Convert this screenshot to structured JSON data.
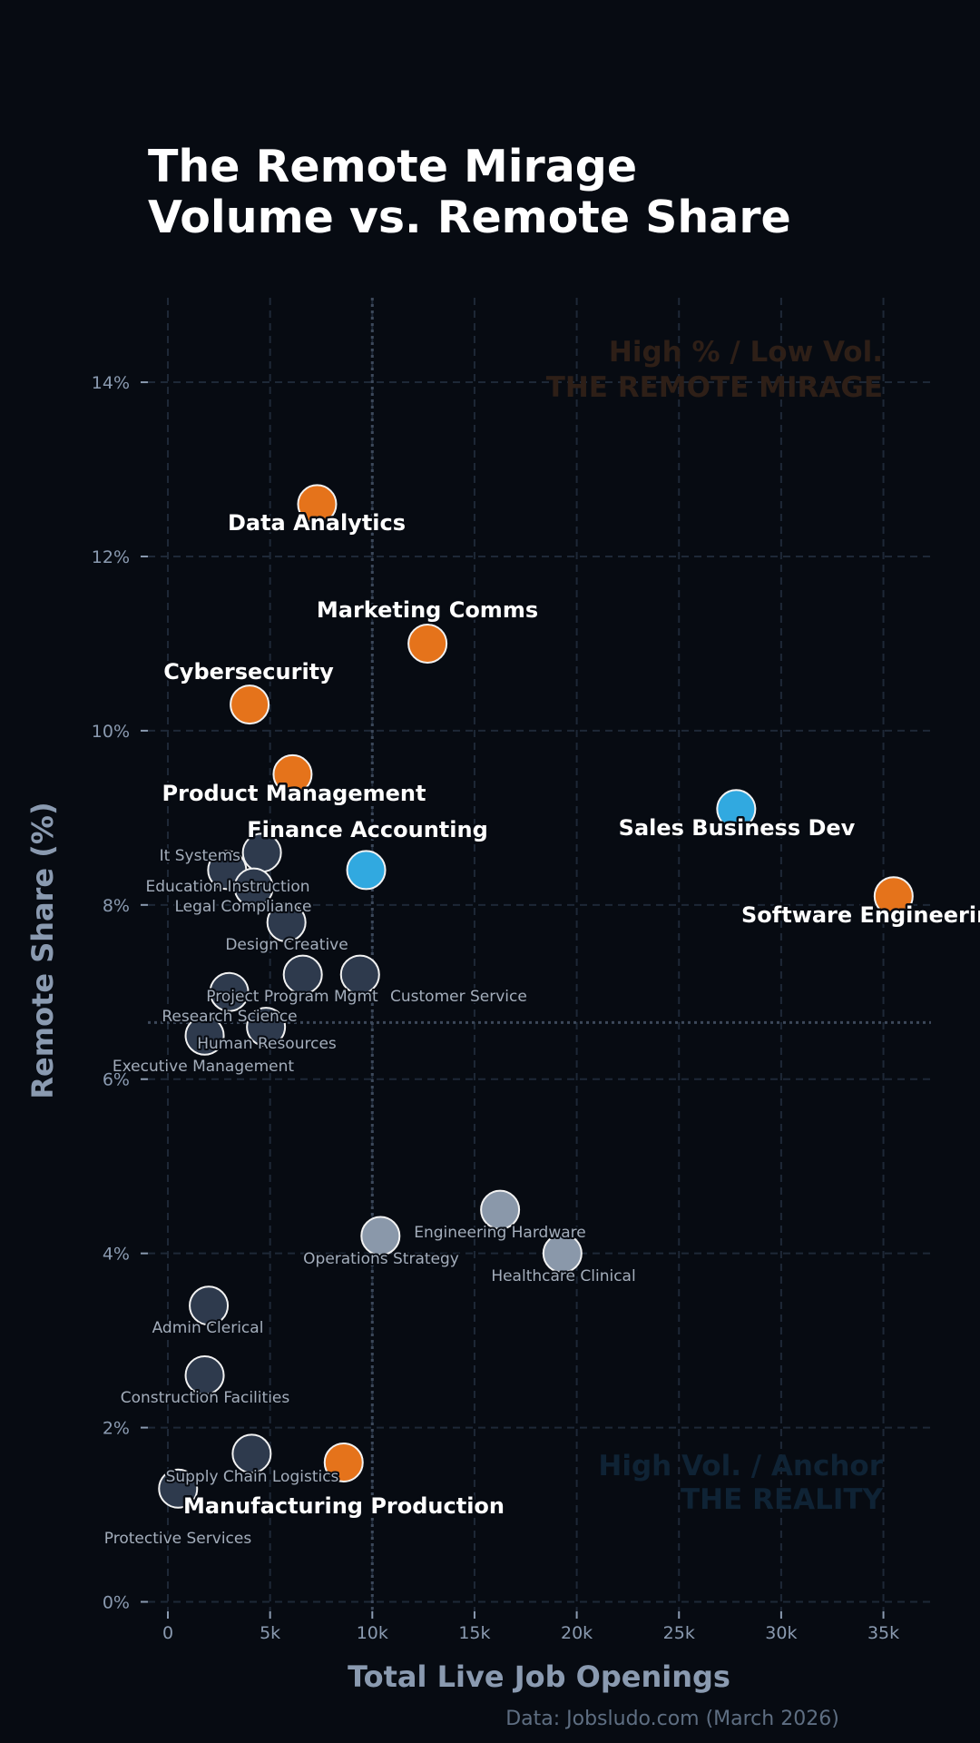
{
  "chart_data": {
    "type": "scatter",
    "title": "The Remote Mirage",
    "subtitle": "Volume vs. Remote Share",
    "xlabel": "Total Live Job Openings",
    "ylabel": "Remote Share (%)",
    "xlim": [
      -1000,
      37500
    ],
    "ylim": [
      0,
      15
    ],
    "x_ticks": [
      0,
      5000,
      10000,
      15000,
      20000,
      25000,
      30000,
      35000
    ],
    "x_tick_labels": [
      "0",
      "5k",
      "10k",
      "15k",
      "20k",
      "25k",
      "30k",
      "35k"
    ],
    "y_ticks": [
      0,
      2,
      4,
      6,
      8,
      10,
      12,
      14
    ],
    "y_tick_labels": [
      "0%",
      "2%",
      "4%",
      "6%",
      "8%",
      "10%",
      "12%",
      "14%"
    ],
    "grid": true,
    "reference_lines": {
      "x_mean": 10000,
      "y_mean": 6.65
    },
    "quadrant_labels": {
      "top_right": [
        "High % / Low Vol.",
        "THE REMOTE MIRAGE"
      ],
      "bottom_right": [
        "High Vol. / Anchor",
        "THE REALITY"
      ]
    },
    "source": "Data: Jobsludo.com (March 2026)",
    "colors": {
      "mirage": "#e5731b",
      "anchor": "#31a9e0",
      "low_volume": "#2e3a4d",
      "mid": "#8a98aa",
      "background": "#070b12",
      "grid": "#1e2837",
      "quad_top": "#2e1f17",
      "quad_bottom": "#0f2335"
    },
    "points": [
      {
        "name": "Data Analytics",
        "x": 7300,
        "y": 12.6,
        "group": "mirage",
        "highlight": true
      },
      {
        "name": "Marketing Comms",
        "x": 12700,
        "y": 11.0,
        "group": "mirage",
        "highlight": true
      },
      {
        "name": "Cybersecurity",
        "x": 4000,
        "y": 10.3,
        "group": "mirage",
        "highlight": true
      },
      {
        "name": "Product Management",
        "x": 6100,
        "y": 9.5,
        "group": "mirage",
        "highlight": true
      },
      {
        "name": "Sales Business Dev",
        "x": 27800,
        "y": 9.1,
        "group": "anchor",
        "highlight": true
      },
      {
        "name": "Finance Accounting",
        "x": 9700,
        "y": 8.4,
        "group": "anchor",
        "highlight": true
      },
      {
        "name": "Software Engineering",
        "x": 35500,
        "y": 8.1,
        "group": "mirage",
        "highlight": true
      },
      {
        "name": "It Systems",
        "x": 4600,
        "y": 8.6,
        "group": "low_volume",
        "highlight": false
      },
      {
        "name": "Education Instruction",
        "x": 2900,
        "y": 8.4,
        "group": "low_volume",
        "highlight": false
      },
      {
        "name": "Legal Compliance",
        "x": 4200,
        "y": 8.2,
        "group": "low_volume",
        "highlight": false
      },
      {
        "name": "Design Creative",
        "x": 5800,
        "y": 7.8,
        "group": "low_volume",
        "highlight": false
      },
      {
        "name": "Project Program Mgmt",
        "x": 6600,
        "y": 7.2,
        "group": "low_volume",
        "highlight": false
      },
      {
        "name": "Customer Service",
        "x": 9400,
        "y": 7.2,
        "group": "low_volume",
        "highlight": false
      },
      {
        "name": "Research Science",
        "x": 3000,
        "y": 7.0,
        "group": "low_volume",
        "highlight": false
      },
      {
        "name": "Human Resources",
        "x": 4800,
        "y": 6.6,
        "group": "low_volume",
        "highlight": false
      },
      {
        "name": "Executive Management",
        "x": 1800,
        "y": 6.5,
        "group": "low_volume",
        "highlight": false
      },
      {
        "name": "Engineering Hardware",
        "x": 16250,
        "y": 4.5,
        "group": "mid",
        "highlight": false
      },
      {
        "name": "Operations Strategy",
        "x": 10400,
        "y": 4.2,
        "group": "mid",
        "highlight": false
      },
      {
        "name": "Healthcare Clinical",
        "x": 19300,
        "y": 4.0,
        "group": "mid",
        "highlight": false
      },
      {
        "name": "Admin Clerical",
        "x": 2000,
        "y": 3.4,
        "group": "low_volume",
        "highlight": false
      },
      {
        "name": "Construction Facilities",
        "x": 1800,
        "y": 2.6,
        "group": "low_volume",
        "highlight": false
      },
      {
        "name": "Supply Chain Logistics",
        "x": 4100,
        "y": 1.7,
        "group": "low_volume",
        "highlight": false
      },
      {
        "name": "Manufacturing Production",
        "x": 8600,
        "y": 1.6,
        "group": "mirage",
        "highlight": true
      },
      {
        "name": "Protective Services",
        "x": 500,
        "y": 1.3,
        "group": "low_volume",
        "highlight": false
      }
    ]
  }
}
